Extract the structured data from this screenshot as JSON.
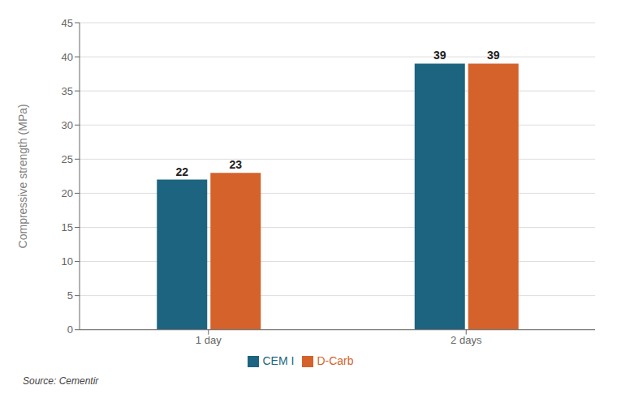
{
  "chart_data": {
    "type": "bar",
    "categories": [
      "1 day",
      "2 days"
    ],
    "series": [
      {
        "name": "CEM I",
        "color": "#1c6480",
        "values": [
          22,
          39
        ]
      },
      {
        "name": "D-Carb",
        "color": "#d4622a",
        "values": [
          23,
          39
        ]
      }
    ],
    "ylabel": "Compressive strength (MPa)",
    "ylim": [
      0,
      45
    ],
    "yticks": [
      0,
      5,
      10,
      15,
      20,
      25,
      30,
      35,
      40,
      45
    ],
    "grid": true,
    "legend": "bottom",
    "data_labels": true,
    "annotations": [
      "Source: Cementir"
    ]
  }
}
